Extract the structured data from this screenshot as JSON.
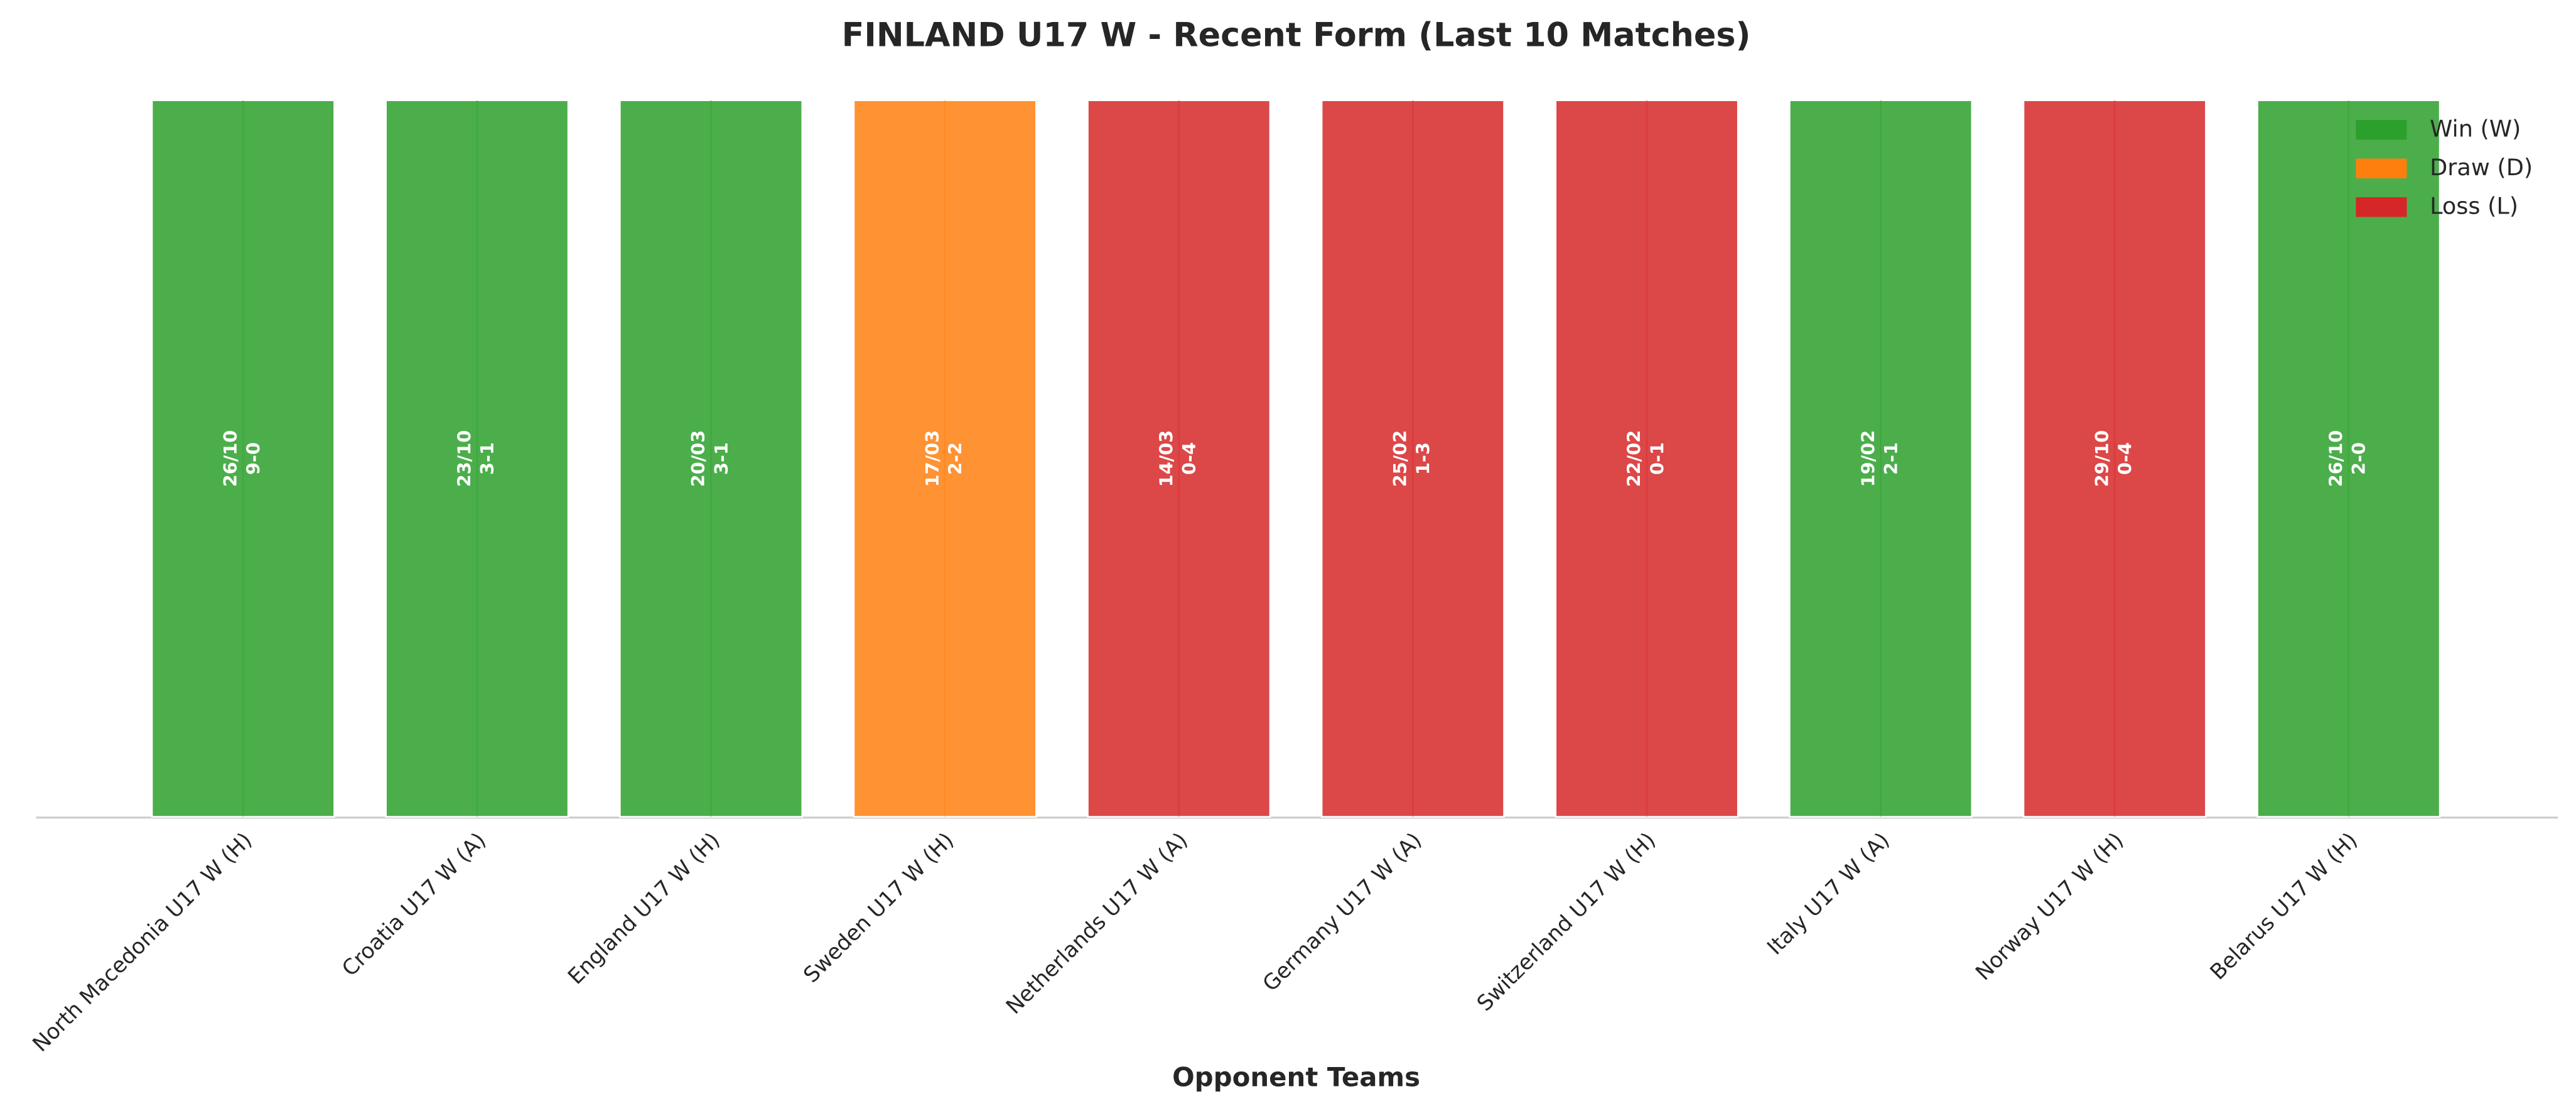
{
  "chart_data": {
    "type": "bar",
    "title": "FINLAND U17 W - Recent Form (Last 10 Matches)",
    "x_label": "Opponent Teams",
    "categories": [
      "North Macedonia U17 W (H)",
      "Croatia U17 W (A)",
      "England U17 W (H)",
      "Sweden U17 W (H)",
      "Netherlands U17 W (A)",
      "Germany U17 W (A)",
      "Switzerland U17 W (H)",
      "Italy U17 W (A)",
      "Norway U17 W (H)",
      "Belarus U17 W (H)"
    ],
    "dates": [
      "26/10",
      "23/10",
      "20/03",
      "17/03",
      "14/03",
      "25/02",
      "22/02",
      "19/02",
      "29/10",
      "26/10"
    ],
    "scores": [
      "9-0",
      "3-1",
      "3-1",
      "2-2",
      "0-4",
      "1-3",
      "0-1",
      "2-1",
      "0-4",
      "2-0"
    ],
    "series": [
      {
        "name": "Win (W)",
        "color": "#2ca02c",
        "values": [
          1,
          1,
          1,
          null,
          null,
          null,
          null,
          1,
          null,
          1
        ]
      },
      {
        "name": "Draw (D)",
        "color": "#ff7f0e",
        "values": [
          null,
          null,
          null,
          1,
          null,
          null,
          null,
          null,
          null,
          null
        ]
      },
      {
        "name": "Loss (L)",
        "color": "#d62728",
        "values": [
          null,
          null,
          null,
          null,
          1,
          1,
          1,
          null,
          1,
          null
        ]
      }
    ],
    "ylim": [
      0,
      1
    ],
    "legend": "upper right"
  }
}
